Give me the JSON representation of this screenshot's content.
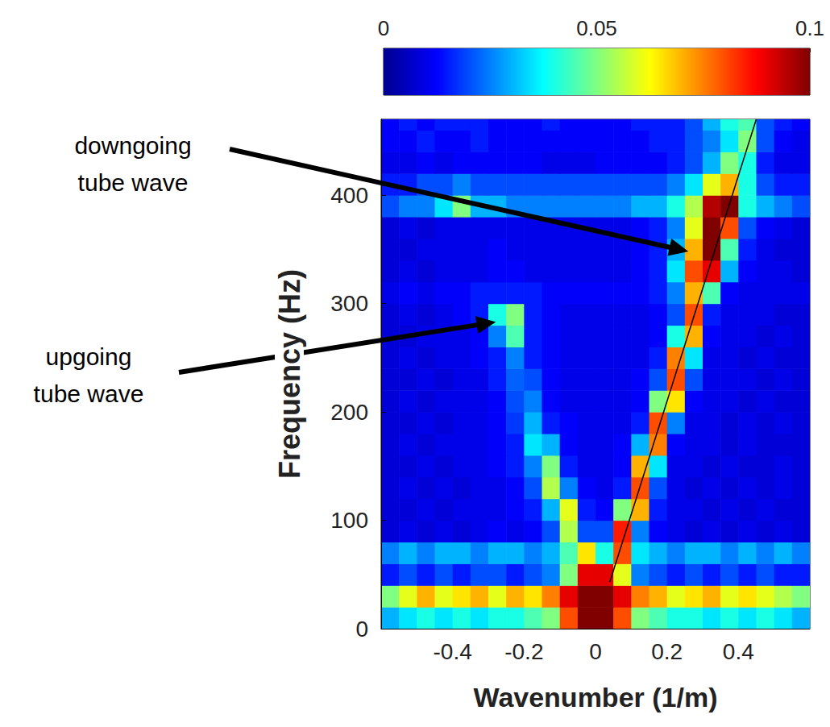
{
  "chart_data": {
    "type": "heatmap",
    "x_label": "Wavenumber (1/m)",
    "y_label": "Frequency (Hz)",
    "xlim": [
      -0.6,
      0.6
    ],
    "xticks": [
      -0.4,
      -0.2,
      0,
      0.2,
      0.4
    ],
    "ylim": [
      0,
      470
    ],
    "yticks": [
      0,
      100,
      200,
      300,
      400
    ],
    "x": [
      -0.575,
      -0.525,
      -0.475,
      -0.425,
      -0.375,
      -0.325,
      -0.275,
      -0.225,
      -0.175,
      -0.125,
      -0.075,
      -0.025,
      0.025,
      0.075,
      0.125,
      0.175,
      0.225,
      0.275,
      0.325,
      0.375,
      0.425,
      0.475,
      0.525,
      0.575
    ],
    "y": [
      10,
      30,
      50,
      70,
      90,
      110,
      130,
      150,
      170,
      190,
      210,
      230,
      250,
      270,
      290,
      310,
      330,
      350,
      370,
      390,
      410,
      430,
      450,
      470
    ],
    "cells": [
      [
        0.03,
        0.035,
        0.04,
        0.035,
        0.04,
        0.035,
        0.04,
        0.04,
        0.045,
        0.05,
        0.08,
        0.1,
        0.1,
        0.08,
        0.05,
        0.045,
        0.04,
        0.04,
        0.035,
        0.04,
        0.035,
        0.04,
        0.035,
        0.03
      ],
      [
        0.05,
        0.06,
        0.07,
        0.06,
        0.065,
        0.07,
        0.06,
        0.07,
        0.065,
        0.075,
        0.09,
        0.1,
        0.1,
        0.09,
        0.075,
        0.07,
        0.06,
        0.065,
        0.07,
        0.06,
        0.065,
        0.06,
        0.055,
        0.05
      ],
      [
        0.015,
        0.02,
        0.015,
        0.02,
        0.015,
        0.02,
        0.02,
        0.015,
        0.02,
        0.025,
        0.05,
        0.09,
        0.09,
        0.06,
        0.025,
        0.02,
        0.015,
        0.02,
        0.015,
        0.02,
        0.015,
        0.02,
        0.015,
        0.015
      ],
      [
        0.025,
        0.03,
        0.025,
        0.03,
        0.03,
        0.025,
        0.03,
        0.03,
        0.025,
        0.03,
        0.045,
        0.065,
        0.04,
        0.08,
        0.035,
        0.03,
        0.025,
        0.03,
        0.03,
        0.025,
        0.03,
        0.025,
        0.03,
        0.025
      ],
      [
        0.008,
        0.01,
        0.008,
        0.01,
        0.008,
        0.01,
        0.012,
        0.01,
        0.012,
        0.02,
        0.055,
        0.02,
        0.02,
        0.085,
        0.025,
        0.012,
        0.01,
        0.008,
        0.01,
        0.008,
        0.01,
        0.008,
        0.01,
        0.008
      ],
      [
        0.008,
        0.008,
        0.01,
        0.008,
        0.01,
        0.01,
        0.01,
        0.012,
        0.015,
        0.03,
        0.06,
        0.015,
        0.012,
        0.05,
        0.07,
        0.015,
        0.01,
        0.01,
        0.008,
        0.01,
        0.008,
        0.01,
        0.008,
        0.008
      ],
      [
        0.008,
        0.01,
        0.008,
        0.01,
        0.008,
        0.01,
        0.01,
        0.012,
        0.02,
        0.055,
        0.025,
        0.012,
        0.01,
        0.015,
        0.08,
        0.02,
        0.01,
        0.008,
        0.01,
        0.008,
        0.01,
        0.008,
        0.01,
        0.008
      ],
      [
        0.008,
        0.008,
        0.01,
        0.008,
        0.01,
        0.01,
        0.012,
        0.015,
        0.025,
        0.05,
        0.015,
        0.01,
        0.01,
        0.012,
        0.07,
        0.035,
        0.01,
        0.01,
        0.008,
        0.01,
        0.008,
        0.008,
        0.01,
        0.008
      ],
      [
        0.008,
        0.01,
        0.008,
        0.01,
        0.01,
        0.01,
        0.012,
        0.015,
        0.035,
        0.03,
        0.012,
        0.01,
        0.01,
        0.012,
        0.03,
        0.075,
        0.012,
        0.01,
        0.01,
        0.008,
        0.01,
        0.008,
        0.008,
        0.008
      ],
      [
        0.008,
        0.008,
        0.01,
        0.008,
        0.01,
        0.01,
        0.012,
        0.018,
        0.03,
        0.015,
        0.012,
        0.01,
        0.01,
        0.01,
        0.015,
        0.08,
        0.025,
        0.01,
        0.01,
        0.008,
        0.01,
        0.008,
        0.01,
        0.008
      ],
      [
        0.008,
        0.01,
        0.008,
        0.01,
        0.01,
        0.01,
        0.012,
        0.02,
        0.025,
        0.012,
        0.01,
        0.01,
        0.01,
        0.01,
        0.012,
        0.05,
        0.065,
        0.012,
        0.01,
        0.01,
        0.008,
        0.01,
        0.008,
        0.008
      ],
      [
        0.008,
        0.008,
        0.01,
        0.008,
        0.01,
        0.01,
        0.015,
        0.022,
        0.02,
        0.012,
        0.01,
        0.01,
        0.01,
        0.01,
        0.012,
        0.02,
        0.08,
        0.02,
        0.01,
        0.01,
        0.01,
        0.008,
        0.01,
        0.008
      ],
      [
        0.008,
        0.01,
        0.008,
        0.01,
        0.01,
        0.012,
        0.015,
        0.025,
        0.015,
        0.012,
        0.01,
        0.01,
        0.01,
        0.01,
        0.01,
        0.015,
        0.075,
        0.035,
        0.01,
        0.01,
        0.008,
        0.01,
        0.008,
        0.008
      ],
      [
        0.008,
        0.008,
        0.01,
        0.01,
        0.01,
        0.012,
        0.025,
        0.045,
        0.015,
        0.012,
        0.01,
        0.01,
        0.01,
        0.01,
        0.01,
        0.012,
        0.04,
        0.07,
        0.012,
        0.01,
        0.01,
        0.008,
        0.01,
        0.008
      ],
      [
        0.008,
        0.01,
        0.008,
        0.01,
        0.012,
        0.015,
        0.04,
        0.05,
        0.015,
        0.012,
        0.01,
        0.01,
        0.01,
        0.01,
        0.01,
        0.012,
        0.02,
        0.08,
        0.015,
        0.01,
        0.01,
        0.01,
        0.008,
        0.008
      ],
      [
        0.01,
        0.012,
        0.01,
        0.012,
        0.012,
        0.015,
        0.015,
        0.015,
        0.015,
        0.012,
        0.012,
        0.012,
        0.012,
        0.012,
        0.012,
        0.015,
        0.025,
        0.07,
        0.045,
        0.012,
        0.01,
        0.01,
        0.01,
        0.01
      ],
      [
        0.008,
        0.01,
        0.008,
        0.01,
        0.01,
        0.01,
        0.012,
        0.012,
        0.01,
        0.01,
        0.01,
        0.01,
        0.01,
        0.01,
        0.012,
        0.015,
        0.035,
        0.08,
        0.09,
        0.03,
        0.012,
        0.01,
        0.01,
        0.008
      ],
      [
        0.008,
        0.008,
        0.01,
        0.01,
        0.01,
        0.01,
        0.012,
        0.01,
        0.01,
        0.01,
        0.01,
        0.01,
        0.01,
        0.01,
        0.012,
        0.015,
        0.03,
        0.07,
        0.1,
        0.045,
        0.015,
        0.01,
        0.008,
        0.008
      ],
      [
        0.008,
        0.01,
        0.008,
        0.01,
        0.01,
        0.01,
        0.01,
        0.01,
        0.01,
        0.01,
        0.01,
        0.01,
        0.01,
        0.01,
        0.012,
        0.015,
        0.025,
        0.06,
        0.1,
        0.08,
        0.02,
        0.012,
        0.01,
        0.008
      ],
      [
        0.02,
        0.025,
        0.025,
        0.035,
        0.05,
        0.03,
        0.03,
        0.025,
        0.025,
        0.025,
        0.025,
        0.025,
        0.025,
        0.025,
        0.03,
        0.03,
        0.04,
        0.055,
        0.095,
        0.1,
        0.04,
        0.03,
        0.025,
        0.02
      ],
      [
        0.015,
        0.015,
        0.02,
        0.02,
        0.025,
        0.02,
        0.02,
        0.02,
        0.02,
        0.02,
        0.02,
        0.02,
        0.02,
        0.02,
        0.02,
        0.02,
        0.025,
        0.035,
        0.06,
        0.07,
        0.04,
        0.02,
        0.015,
        0.015
      ],
      [
        0.01,
        0.01,
        0.012,
        0.01,
        0.012,
        0.012,
        0.012,
        0.012,
        0.012,
        0.01,
        0.01,
        0.01,
        0.012,
        0.012,
        0.012,
        0.012,
        0.015,
        0.02,
        0.03,
        0.05,
        0.04,
        0.015,
        0.01,
        0.01
      ],
      [
        0.012,
        0.012,
        0.015,
        0.012,
        0.012,
        0.015,
        0.012,
        0.012,
        0.012,
        0.012,
        0.012,
        0.012,
        0.012,
        0.012,
        0.012,
        0.015,
        0.015,
        0.02,
        0.025,
        0.035,
        0.05,
        0.02,
        0.012,
        0.01
      ],
      [
        0.012,
        0.015,
        0.012,
        0.015,
        0.015,
        0.015,
        0.012,
        0.012,
        0.012,
        0.015,
        0.012,
        0.012,
        0.012,
        0.012,
        0.015,
        0.015,
        0.015,
        0.02,
        0.03,
        0.04,
        0.045,
        0.02,
        0.015,
        0.012
      ]
    ],
    "colorbar": {
      "range": [
        0,
        0.1
      ],
      "ticks": [
        0,
        0.05,
        0.1
      ]
    },
    "fit_line": {
      "x": [
        0.04,
        0.45
      ],
      "y": [
        43,
        470
      ],
      "color": "#000000"
    },
    "annotations": [
      {
        "text": [
          "downgoing",
          "tube wave"
        ],
        "x": 0.26,
        "y": 348
      },
      {
        "text": [
          "upgoing",
          "tube wave"
        ],
        "x": -0.279,
        "y": 283
      }
    ]
  }
}
